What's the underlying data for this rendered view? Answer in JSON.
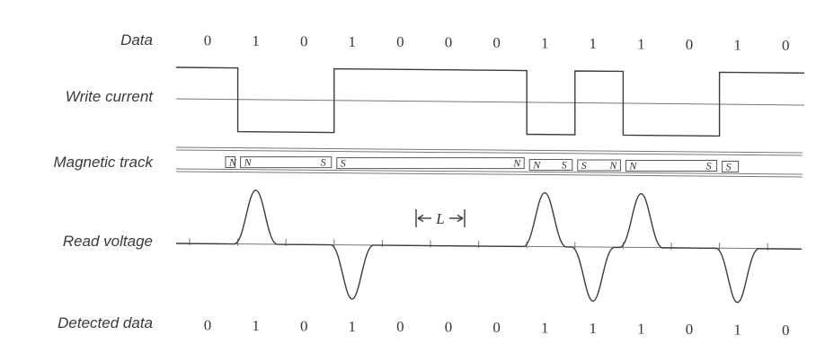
{
  "labels": {
    "data": "Data",
    "write_current": "Write current",
    "magnetic_track": "Magnetic track",
    "read_voltage": "Read voltage",
    "detected_data": "Detected data",
    "bit_cell_length": "L"
  },
  "data_bits": [
    "0",
    "1",
    "0",
    "1",
    "0",
    "0",
    "0",
    "1",
    "1",
    "1",
    "0",
    "1",
    "0"
  ],
  "detected_bits": [
    "0",
    "1",
    "0",
    "1",
    "0",
    "0",
    "0",
    "1",
    "1",
    "1",
    "0",
    "1",
    "0"
  ],
  "write_current_levels": [
    "high",
    "low",
    "low",
    "high",
    "high",
    "high",
    "high",
    "low",
    "high",
    "low",
    "low",
    "high",
    "high"
  ],
  "magnetic_domains": [
    {
      "left": "N",
      "right": ""
    },
    {
      "left": "N",
      "right": "S"
    },
    {
      "left": "S",
      "right": "N"
    },
    {
      "left": "N",
      "right": "S"
    },
    {
      "left": "S",
      "right": "N"
    },
    {
      "left": "N",
      "right": "S"
    },
    {
      "left": "S",
      "right": ""
    }
  ],
  "read_pulses": [
    {
      "bit_index": 1,
      "polarity": "positive"
    },
    {
      "bit_index": 3,
      "polarity": "negative"
    },
    {
      "bit_index": 7,
      "polarity": "positive"
    },
    {
      "bit_index": 8,
      "polarity": "negative"
    },
    {
      "bit_index": 9,
      "polarity": "positive"
    },
    {
      "bit_index": 11,
      "polarity": "negative"
    }
  ]
}
